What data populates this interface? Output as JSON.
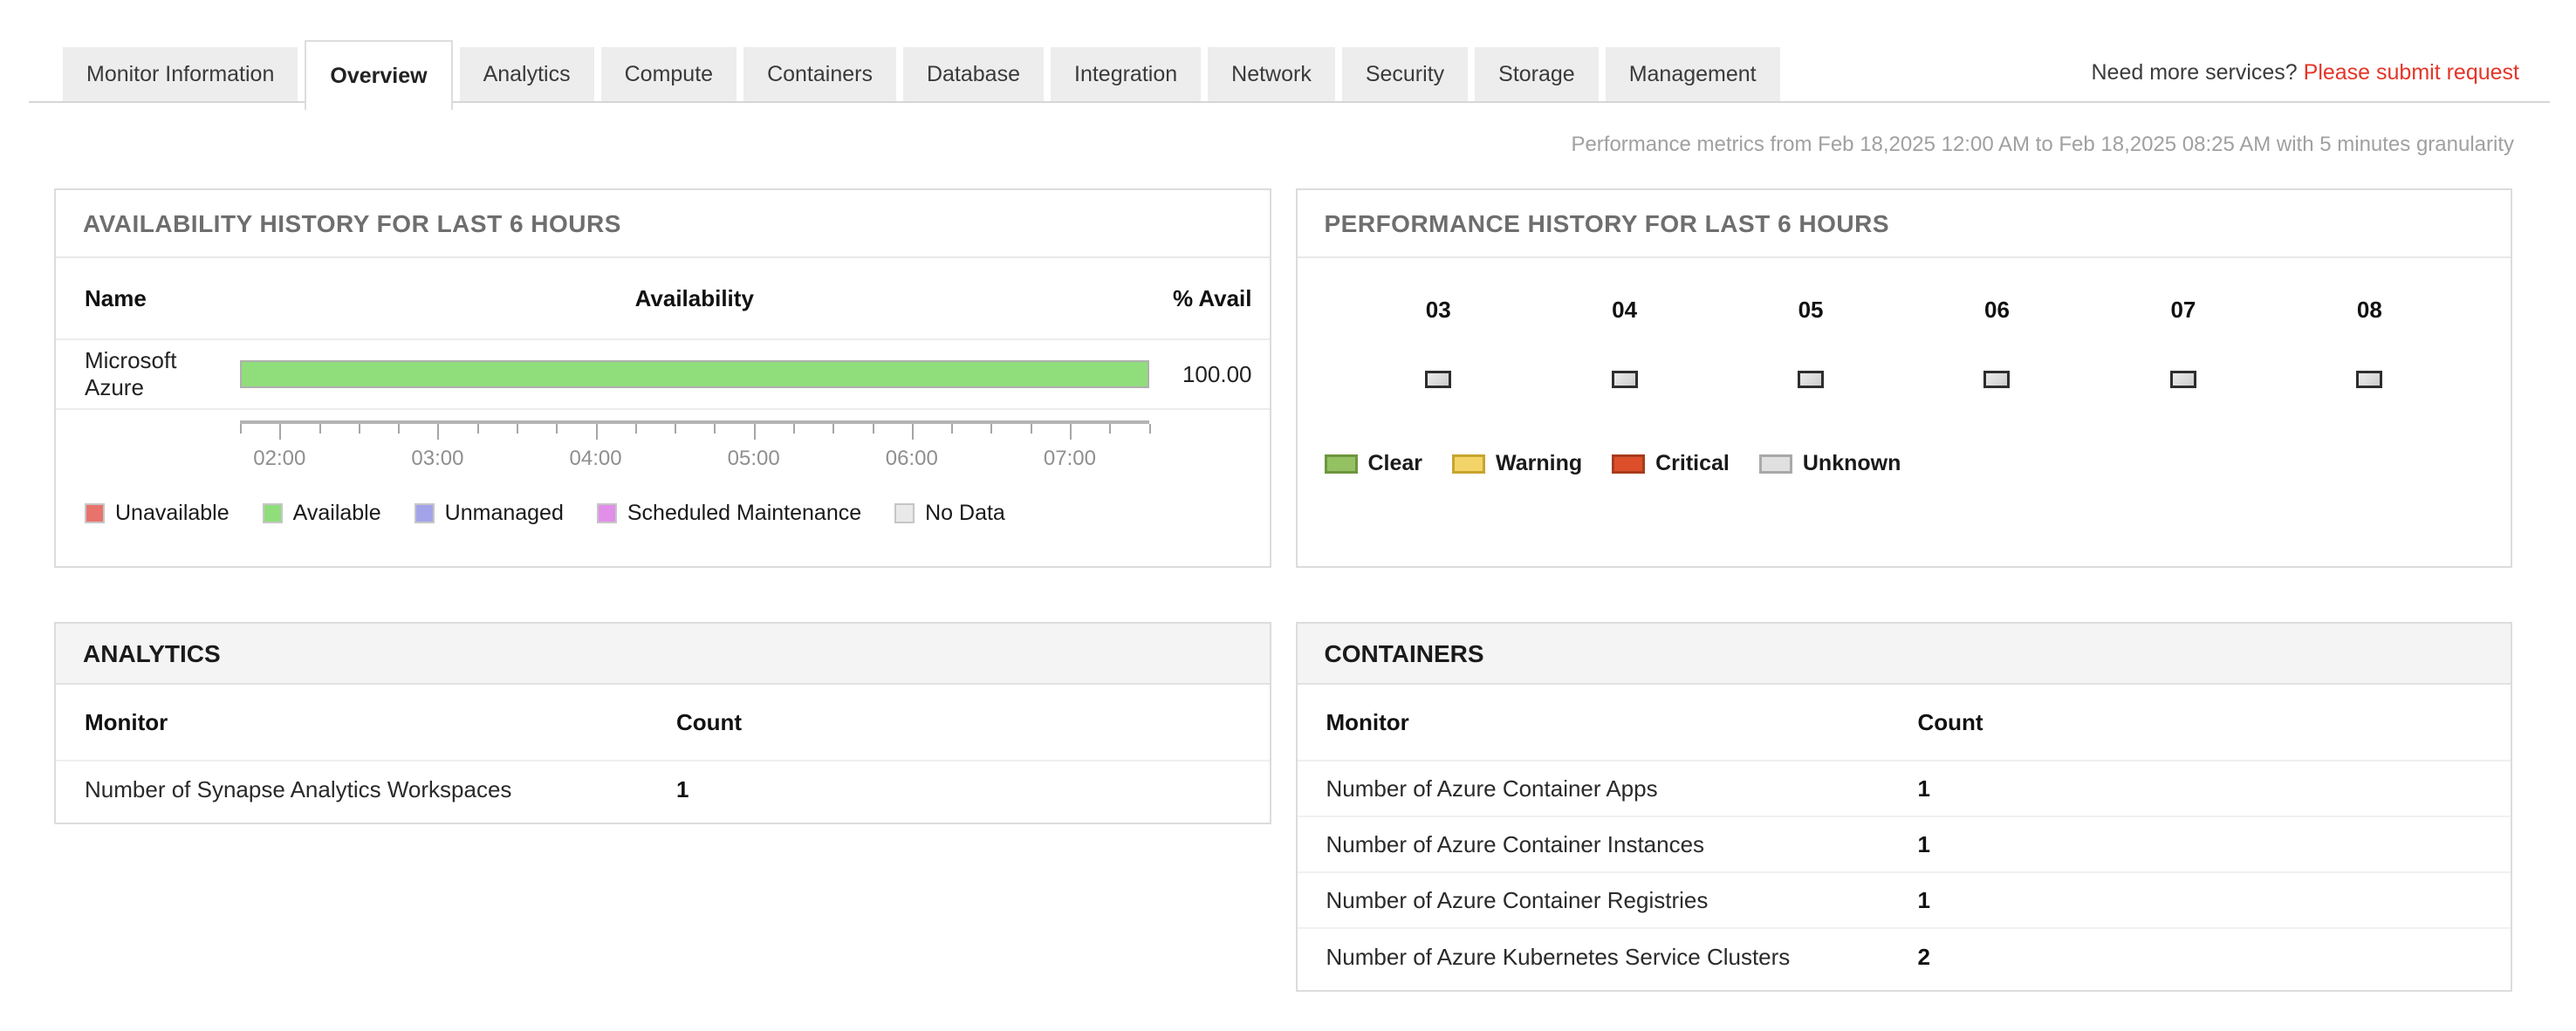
{
  "tabbar": {
    "tabs": [
      {
        "label": "Monitor Information",
        "active": false
      },
      {
        "label": "Overview",
        "active": true
      },
      {
        "label": "Analytics",
        "active": false
      },
      {
        "label": "Compute",
        "active": false
      },
      {
        "label": "Containers",
        "active": false
      },
      {
        "label": "Database",
        "active": false
      },
      {
        "label": "Integration",
        "active": false
      },
      {
        "label": "Network",
        "active": false
      },
      {
        "label": "Security",
        "active": false
      },
      {
        "label": "Storage",
        "active": false
      },
      {
        "label": "Management",
        "active": false
      }
    ],
    "services_prompt": "Need more services? ",
    "services_link": "Please submit request",
    "services_link_color": "#e53528"
  },
  "meta_note": "Performance metrics from Feb 18,2025 12:00 AM to Feb 18,2025 08:25 AM with 5 minutes granularity",
  "availability": {
    "title": "AVAILABILITY HISTORY FOR LAST 6 HOURS",
    "columns": {
      "name": "Name",
      "availability": "Availability",
      "percent": "% Avail"
    },
    "rows": [
      {
        "name": "Microsoft Azure",
        "percent_label": "100.00",
        "bar_percent": 100,
        "bar_color": "#90dd7c"
      }
    ],
    "axis": {
      "hour_labels": [
        "02:00",
        "03:00",
        "04:00",
        "05:00",
        "06:00",
        "07:00"
      ],
      "tick_count": 24,
      "major_every": 4,
      "major_offset": 1
    },
    "legend": [
      {
        "label": "Unavailable",
        "color": "#e8736c"
      },
      {
        "label": "Available",
        "color": "#90dd7c"
      },
      {
        "label": "Unmanaged",
        "color": "#a3a3ea"
      },
      {
        "label": "Scheduled Maintenance",
        "color": "#e18fe9"
      },
      {
        "label": "No Data",
        "color": "#e9e9e9"
      }
    ]
  },
  "performance": {
    "title": "PERFORMANCE HISTORY FOR LAST 6 HOURS",
    "hours": [
      "03",
      "04",
      "05",
      "06",
      "07",
      "08"
    ],
    "statuses": [
      "unknown",
      "unknown",
      "unknown",
      "unknown",
      "unknown",
      "unknown"
    ],
    "legend": [
      {
        "label": "Clear",
        "fill": "#94c162",
        "border": "#6f9540"
      },
      {
        "label": "Warning",
        "fill": "#f2d469",
        "border": "#c9a42e"
      },
      {
        "label": "Critical",
        "fill": "#dd4f2b",
        "border": "#a63c1c"
      },
      {
        "label": "Unknown",
        "fill": "#e0e0e0",
        "border": "#a9a9a9"
      }
    ]
  },
  "analytics": {
    "title": "ANALYTICS",
    "columns": {
      "monitor": "Monitor",
      "count": "Count"
    },
    "rows": [
      {
        "monitor": "Number of Synapse Analytics Workspaces",
        "count": "1"
      }
    ]
  },
  "containers": {
    "title": "CONTAINERS",
    "columns": {
      "monitor": "Monitor",
      "count": "Count"
    },
    "rows": [
      {
        "monitor": "Number of Azure Container Apps",
        "count": "1"
      },
      {
        "monitor": "Number of Azure Container Instances",
        "count": "1"
      },
      {
        "monitor": "Number of Azure Container Registries",
        "count": "1"
      },
      {
        "monitor": "Number of Azure Kubernetes Service Clusters",
        "count": "2"
      }
    ]
  }
}
